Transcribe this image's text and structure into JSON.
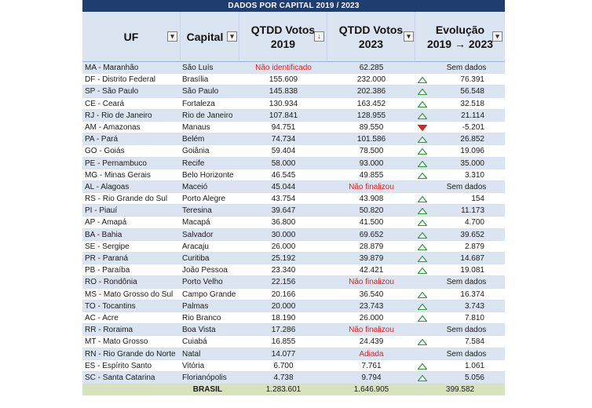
{
  "title": "DADOS POR CAPITAL 2019 / 2023",
  "headers": {
    "uf": "UF",
    "capital": "Capital",
    "votos2019": "QTDD Votos\n2019",
    "votos2023": "QTDD Votos\n2023",
    "evolucao": "Evolução\n2019 → 2023"
  },
  "filter_icons": [
    "filter-dropdown-icon",
    "sort-filter-icon"
  ],
  "colors": {
    "header_bg": "#1f3d6e",
    "band": "#dbe5f1",
    "total_bg": "#d6e3bc",
    "alert": "#e02020",
    "up": "#2e9e3a",
    "down": "#e02020"
  },
  "rows": [
    {
      "uf": "MA - Maranhão",
      "capital": "São Luís",
      "v2019": "Não identificado",
      "v2023": "62.285",
      "evo": "Sem dados",
      "trend": "none",
      "alert19": true,
      "alert23": false
    },
    {
      "uf": "DF - Distrito Federal",
      "capital": "Brasília",
      "v2019": "155.609",
      "v2023": "232.000",
      "evo": "76.391",
      "trend": "up",
      "alert19": false,
      "alert23": false
    },
    {
      "uf": "SP - São Paulo",
      "capital": "São Paulo",
      "v2019": "145.838",
      "v2023": "202.386",
      "evo": "56.548",
      "trend": "up",
      "alert19": false,
      "alert23": false
    },
    {
      "uf": "CE - Ceará",
      "capital": "Fortaleza",
      "v2019": "130.934",
      "v2023": "163.452",
      "evo": "32.518",
      "trend": "up",
      "alert19": false,
      "alert23": false
    },
    {
      "uf": "RJ - Rio de Janeiro",
      "capital": "Rio de Janeiro",
      "v2019": "107.841",
      "v2023": "128.955",
      "evo": "21.114",
      "trend": "up",
      "alert19": false,
      "alert23": false
    },
    {
      "uf": "AM - Amazonas",
      "capital": "Manaus",
      "v2019": "94.751",
      "v2023": "89.550",
      "evo": "-5.201",
      "trend": "down",
      "alert19": false,
      "alert23": false
    },
    {
      "uf": "PA - Pará",
      "capital": "Belém",
      "v2019": "74.734",
      "v2023": "101.586",
      "evo": "26.852",
      "trend": "up",
      "alert19": false,
      "alert23": false
    },
    {
      "uf": "GO - Goiás",
      "capital": "Goiânia",
      "v2019": "59.404",
      "v2023": "78.500",
      "evo": "19.096",
      "trend": "up",
      "alert19": false,
      "alert23": false
    },
    {
      "uf": "PE - Pernambuco",
      "capital": "Recife",
      "v2019": "58.000",
      "v2023": "93.000",
      "evo": "35.000",
      "trend": "up",
      "alert19": false,
      "alert23": false
    },
    {
      "uf": "MG - Minas Gerais",
      "capital": "Belo Horizonte",
      "v2019": "46.545",
      "v2023": "49.855",
      "evo": "3.310",
      "trend": "up",
      "alert19": false,
      "alert23": false
    },
    {
      "uf": "AL - Alagoas",
      "capital": "Maceió",
      "v2019": "45.044",
      "v2023": "Não finalizou",
      "evo": "Sem dados",
      "trend": "none",
      "alert19": false,
      "alert23": true
    },
    {
      "uf": "RS - Rio Grande do Sul",
      "capital": "Porto Alegre",
      "v2019": "43.754",
      "v2023": "43.908",
      "evo": "154",
      "trend": "up",
      "alert19": false,
      "alert23": false
    },
    {
      "uf": "PI - Piauí",
      "capital": "Teresina",
      "v2019": "39.647",
      "v2023": "50.820",
      "evo": "11.173",
      "trend": "up",
      "alert19": false,
      "alert23": false
    },
    {
      "uf": "AP - Amapá",
      "capital": "Macapá",
      "v2019": "36.800",
      "v2023": "41.500",
      "evo": "4.700",
      "trend": "up",
      "alert19": false,
      "alert23": false
    },
    {
      "uf": "BA - Bahia",
      "capital": "Salvador",
      "v2019": "30.000",
      "v2023": "69.652",
      "evo": "39.652",
      "trend": "up",
      "alert19": false,
      "alert23": false
    },
    {
      "uf": "SE - Sergipe",
      "capital": "Aracaju",
      "v2019": "26.000",
      "v2023": "28.879",
      "evo": "2.879",
      "trend": "up",
      "alert19": false,
      "alert23": false
    },
    {
      "uf": "PR - Paraná",
      "capital": "Curitiba",
      "v2019": "25.192",
      "v2023": "39.879",
      "evo": "14.687",
      "trend": "up",
      "alert19": false,
      "alert23": false
    },
    {
      "uf": "PB - Paraíba",
      "capital": "João Pessoa",
      "v2019": "23.340",
      "v2023": "42.421",
      "evo": "19.081",
      "trend": "up",
      "alert19": false,
      "alert23": false
    },
    {
      "uf": "RO - Rondônia",
      "capital": "Porto Velho",
      "v2019": "22.156",
      "v2023": "Não finalizou",
      "evo": "Sem dados",
      "trend": "none",
      "alert19": false,
      "alert23": true
    },
    {
      "uf": "MS - Mato Grosso do Sul",
      "capital": "Campo Grande",
      "v2019": "20.166",
      "v2023": "36.540",
      "evo": "16.374",
      "trend": "up",
      "alert19": false,
      "alert23": false
    },
    {
      "uf": "TO - Tocantins",
      "capital": "Palmas",
      "v2019": "20.000",
      "v2023": "23.743",
      "evo": "3.743",
      "trend": "up",
      "alert19": false,
      "alert23": false
    },
    {
      "uf": "AC - Acre",
      "capital": "Rio Branco",
      "v2019": "18.190",
      "v2023": "26.000",
      "evo": "7.810",
      "trend": "up",
      "alert19": false,
      "alert23": false
    },
    {
      "uf": "RR - Roraima",
      "capital": "Boa Vista",
      "v2019": "17.286",
      "v2023": "Não finalizou",
      "evo": "Sem dados",
      "trend": "none",
      "alert19": false,
      "alert23": true
    },
    {
      "uf": "MT - Mato Grosso",
      "capital": "Cuiabá",
      "v2019": "16.855",
      "v2023": "24.439",
      "evo": "7.584",
      "trend": "up",
      "alert19": false,
      "alert23": false
    },
    {
      "uf": "RN - Rio Grande do Norte",
      "capital": "Natal",
      "v2019": "14.077",
      "v2023": "Adiada",
      "evo": "Sem dados",
      "trend": "none",
      "alert19": false,
      "alert23": true
    },
    {
      "uf": "ES - Espírito Santo",
      "capital": "Vitória",
      "v2019": "6.700",
      "v2023": "7.761",
      "evo": "1.061",
      "trend": "up",
      "alert19": false,
      "alert23": false
    },
    {
      "uf": "SC - Santa Catarina",
      "capital": "Florianópolis",
      "v2019": "4.738",
      "v2023": "9.794",
      "evo": "5.056",
      "trend": "up",
      "alert19": false,
      "alert23": false
    }
  ],
  "total": {
    "label": "BRASIL",
    "v2019": "1.283.601",
    "v2023": "1.646.905",
    "evo": "399.582"
  }
}
